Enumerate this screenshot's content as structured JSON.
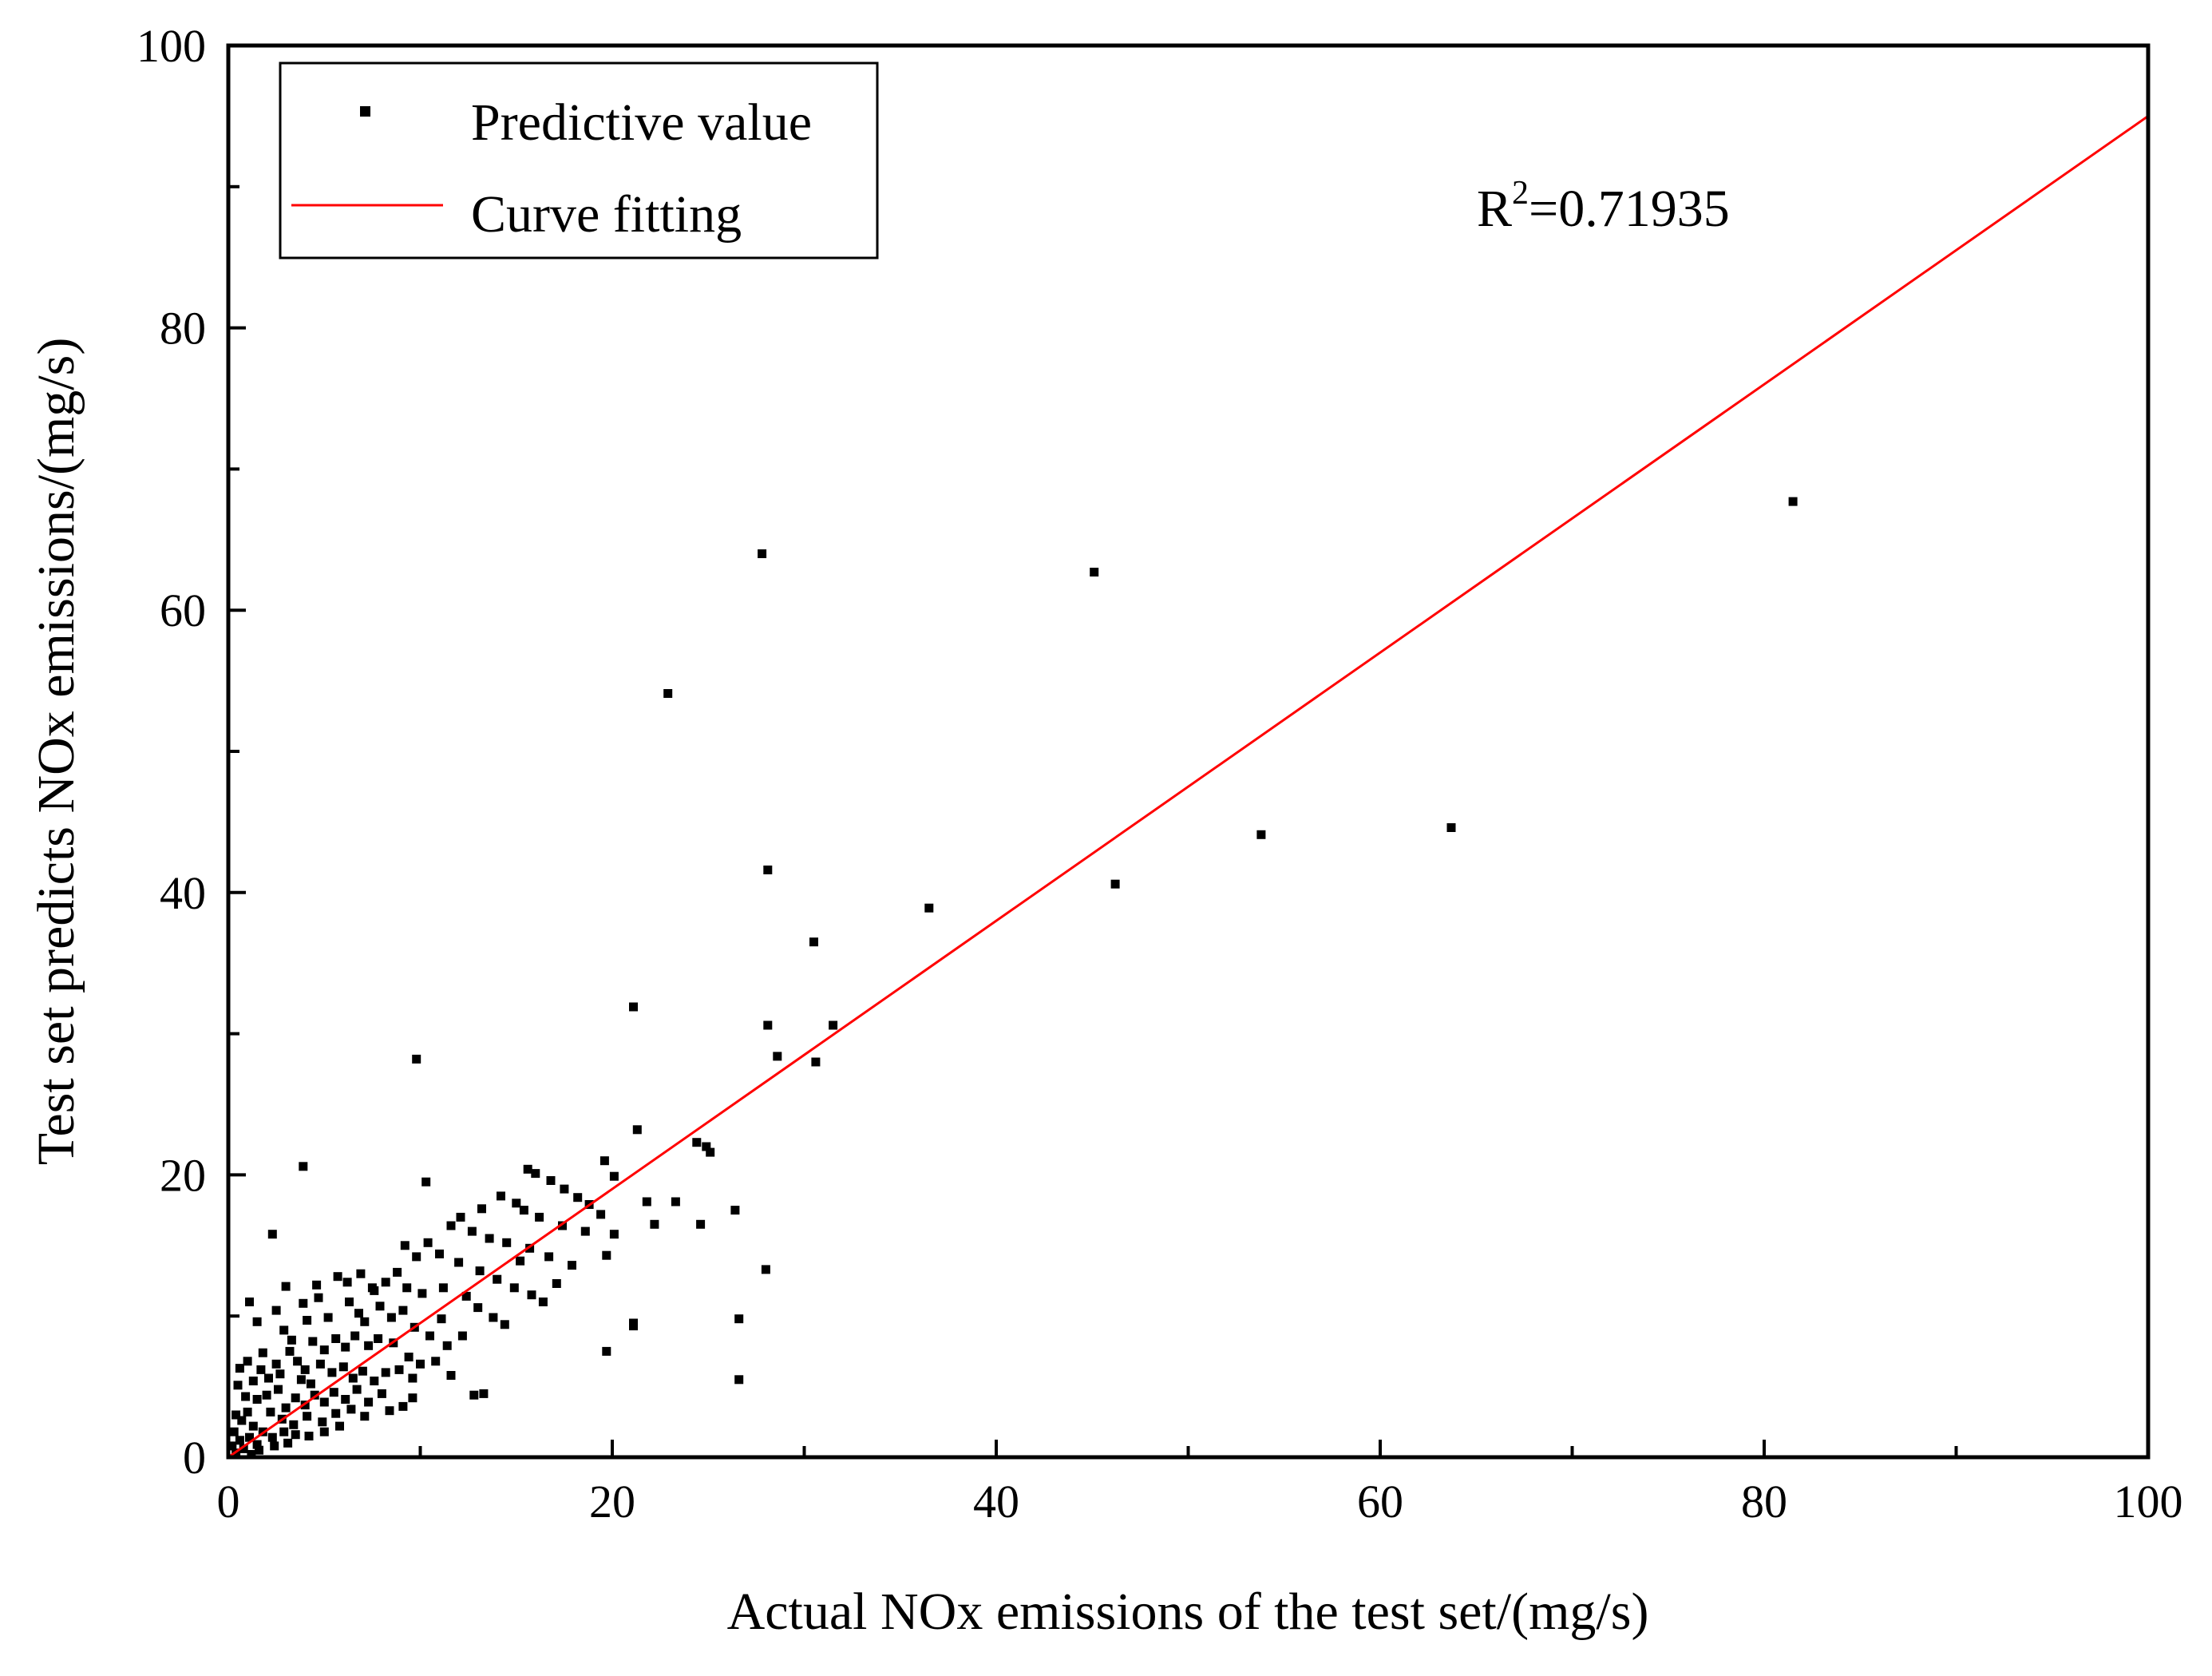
{
  "chart_data": {
    "type": "scatter",
    "xlabel": "Actual NOx emissions of the test set/(mg/s)",
    "ylabel": "Test set predicts NOx emissions/(mg/s)",
    "xlim": [
      0,
      100
    ],
    "ylim": [
      0,
      100
    ],
    "x_ticks": [
      "0",
      "20",
      "40",
      "60",
      "80",
      "100"
    ],
    "y_ticks": [
      "0",
      "20",
      "40",
      "60",
      "80",
      "100"
    ],
    "grid": false,
    "legend_position": "top-left",
    "legend": [
      {
        "name": "Predictive value",
        "marker": "square",
        "color": "#000000"
      },
      {
        "name": "Curve fitting",
        "marker": "line",
        "color": "#ff0000"
      }
    ],
    "annotation": {
      "base": "R",
      "sup": "2",
      "text": "=0.71935"
    },
    "fit_line": {
      "slope": 0.95,
      "intercept": 0,
      "color": "#ff0000"
    },
    "series": [
      {
        "name": "Predictive value",
        "color": "#000000",
        "points": [
          [
            27.8,
            64.0
          ],
          [
            45.1,
            62.7
          ],
          [
            81.5,
            67.7
          ],
          [
            22.9,
            54.1
          ],
          [
            28.1,
            41.6
          ],
          [
            36.5,
            38.9
          ],
          [
            46.2,
            40.6
          ],
          [
            53.8,
            44.1
          ],
          [
            63.7,
            44.6
          ],
          [
            30.5,
            36.5
          ],
          [
            28.1,
            30.6
          ],
          [
            31.5,
            30.6
          ],
          [
            28.6,
            28.4
          ],
          [
            30.6,
            28.0
          ],
          [
            21.1,
            31.9
          ],
          [
            9.8,
            28.2
          ],
          [
            21.3,
            23.2
          ],
          [
            24.4,
            22.3
          ],
          [
            24.9,
            22.0
          ],
          [
            25.1,
            21.6
          ],
          [
            3.9,
            20.6
          ],
          [
            10.3,
            19.5
          ],
          [
            20.1,
            19.9
          ],
          [
            19.6,
            21.0
          ],
          [
            26.4,
            17.5
          ],
          [
            21.8,
            18.1
          ],
          [
            23.3,
            18.1
          ],
          [
            22.2,
            16.5
          ],
          [
            24.6,
            16.5
          ],
          [
            2.3,
            15.8
          ],
          [
            28.0,
            13.3
          ],
          [
            21.1,
            9.3
          ],
          [
            21.1,
            9.5
          ],
          [
            26.6,
            9.8
          ],
          [
            19.7,
            7.5
          ],
          [
            26.6,
            5.5
          ],
          [
            15.6,
            20.4
          ],
          [
            16.0,
            20.1
          ],
          [
            16.8,
            19.6
          ],
          [
            17.5,
            19.0
          ],
          [
            18.2,
            18.4
          ],
          [
            18.8,
            17.9
          ],
          [
            14.2,
            18.5
          ],
          [
            15.0,
            18.0
          ],
          [
            15.4,
            17.5
          ],
          [
            16.2,
            17.0
          ],
          [
            17.4,
            16.4
          ],
          [
            18.6,
            16.0
          ],
          [
            13.2,
            17.6
          ],
          [
            12.1,
            17.0
          ],
          [
            11.6,
            16.4
          ],
          [
            12.7,
            16.0
          ],
          [
            13.6,
            15.5
          ],
          [
            14.5,
            15.2
          ],
          [
            15.7,
            14.8
          ],
          [
            16.7,
            14.2
          ],
          [
            17.9,
            13.6
          ],
          [
            19.7,
            14.3
          ],
          [
            20.1,
            15.8
          ],
          [
            19.4,
            17.2
          ],
          [
            10.4,
            15.2
          ],
          [
            9.8,
            14.2
          ],
          [
            9.2,
            15.0
          ],
          [
            11.0,
            14.4
          ],
          [
            12.0,
            13.8
          ],
          [
            13.1,
            13.2
          ],
          [
            14.0,
            12.6
          ],
          [
            14.9,
            12.0
          ],
          [
            15.8,
            11.5
          ],
          [
            16.4,
            11.0
          ],
          [
            17.1,
            12.3
          ],
          [
            15.2,
            13.9
          ],
          [
            8.2,
            12.4
          ],
          [
            8.8,
            13.1
          ],
          [
            7.6,
            11.8
          ],
          [
            9.3,
            12.0
          ],
          [
            10.1,
            11.6
          ],
          [
            11.2,
            12.0
          ],
          [
            12.4,
            11.4
          ],
          [
            13.0,
            10.6
          ],
          [
            13.8,
            9.9
          ],
          [
            14.4,
            9.4
          ],
          [
            12.2,
            8.6
          ],
          [
            11.4,
            7.9
          ],
          [
            6.3,
            11.0
          ],
          [
            6.8,
            10.2
          ],
          [
            7.1,
            9.6
          ],
          [
            7.9,
            10.7
          ],
          [
            8.5,
            9.9
          ],
          [
            9.1,
            10.4
          ],
          [
            9.7,
            9.2
          ],
          [
            10.5,
            8.6
          ],
          [
            11.1,
            9.8
          ],
          [
            10.8,
            6.8
          ],
          [
            11.6,
            5.8
          ],
          [
            13.3,
            4.5
          ],
          [
            12.8,
            4.4
          ],
          [
            8.6,
            8.1
          ],
          [
            9.4,
            7.1
          ],
          [
            10.0,
            6.6
          ],
          [
            8.9,
            6.2
          ],
          [
            9.6,
            5.6
          ],
          [
            4.6,
            12.2
          ],
          [
            5.7,
            12.8
          ],
          [
            3.0,
            12.1
          ],
          [
            4.1,
            9.7
          ],
          [
            5.2,
            9.9
          ],
          [
            4.4,
            8.2
          ],
          [
            5.0,
            7.6
          ],
          [
            5.6,
            8.4
          ],
          [
            6.1,
            7.8
          ],
          [
            6.6,
            8.6
          ],
          [
            7.3,
            7.9
          ],
          [
            7.8,
            8.4
          ],
          [
            3.2,
            7.5
          ],
          [
            3.6,
            6.8
          ],
          [
            4.0,
            6.2
          ],
          [
            4.8,
            6.6
          ],
          [
            5.4,
            6.0
          ],
          [
            6.0,
            6.4
          ],
          [
            6.5,
            5.6
          ],
          [
            7.0,
            6.1
          ],
          [
            7.6,
            5.4
          ],
          [
            8.2,
            6.0
          ],
          [
            8.0,
            4.5
          ],
          [
            7.3,
            3.9
          ],
          [
            6.7,
            4.8
          ],
          [
            6.1,
            4.1
          ],
          [
            5.5,
            4.6
          ],
          [
            5.0,
            3.9
          ],
          [
            4.5,
            4.4
          ],
          [
            4.0,
            3.7
          ],
          [
            3.5,
            4.2
          ],
          [
            3.0,
            3.5
          ],
          [
            2.6,
            4.8
          ],
          [
            2.1,
            5.6
          ],
          [
            1.7,
            6.2
          ],
          [
            1.3,
            5.4
          ],
          [
            1.0,
            6.8
          ],
          [
            0.6,
            6.3
          ],
          [
            1.5,
            4.1
          ],
          [
            2.2,
            3.2
          ],
          [
            2.8,
            2.7
          ],
          [
            3.4,
            2.3
          ],
          [
            4.1,
            2.9
          ],
          [
            4.9,
            2.5
          ],
          [
            5.6,
            3.1
          ],
          [
            6.4,
            3.4
          ],
          [
            7.1,
            2.9
          ],
          [
            8.4,
            3.3
          ],
          [
            9.1,
            3.6
          ],
          [
            9.6,
            4.2
          ],
          [
            1.0,
            3.2
          ],
          [
            0.7,
            2.6
          ],
          [
            0.4,
            3.0
          ],
          [
            1.3,
            2.2
          ],
          [
            1.8,
            1.8
          ],
          [
            2.3,
            1.4
          ],
          [
            2.9,
            1.8
          ],
          [
            3.5,
            1.6
          ],
          [
            0.3,
            1.8
          ],
          [
            0.6,
            1.2
          ],
          [
            1.1,
            1.4
          ],
          [
            1.5,
            0.9
          ],
          [
            0.2,
            0.8
          ],
          [
            0.8,
            0.6
          ],
          [
            1.6,
            0.5
          ],
          [
            2.4,
            0.8
          ],
          [
            0.4,
            0.3
          ],
          [
            1.2,
            0.2
          ],
          [
            3.1,
            1.0
          ],
          [
            4.2,
            1.5
          ],
          [
            5.0,
            1.8
          ],
          [
            5.8,
            2.2
          ],
          [
            0.9,
            4.3
          ],
          [
            0.5,
            5.1
          ],
          [
            1.8,
            7.4
          ],
          [
            2.5,
            6.6
          ],
          [
            3.3,
            8.3
          ],
          [
            2.9,
            9.0
          ],
          [
            1.5,
            9.6
          ],
          [
            1.1,
            11.0
          ],
          [
            2.5,
            10.4
          ],
          [
            3.9,
            10.9
          ],
          [
            4.7,
            11.3
          ],
          [
            6.2,
            12.4
          ],
          [
            6.9,
            13.0
          ],
          [
            7.5,
            12.0
          ],
          [
            3.8,
            5.5
          ],
          [
            2.0,
            4.4
          ],
          [
            2.7,
            5.9
          ],
          [
            4.3,
            5.2
          ]
        ]
      }
    ]
  }
}
